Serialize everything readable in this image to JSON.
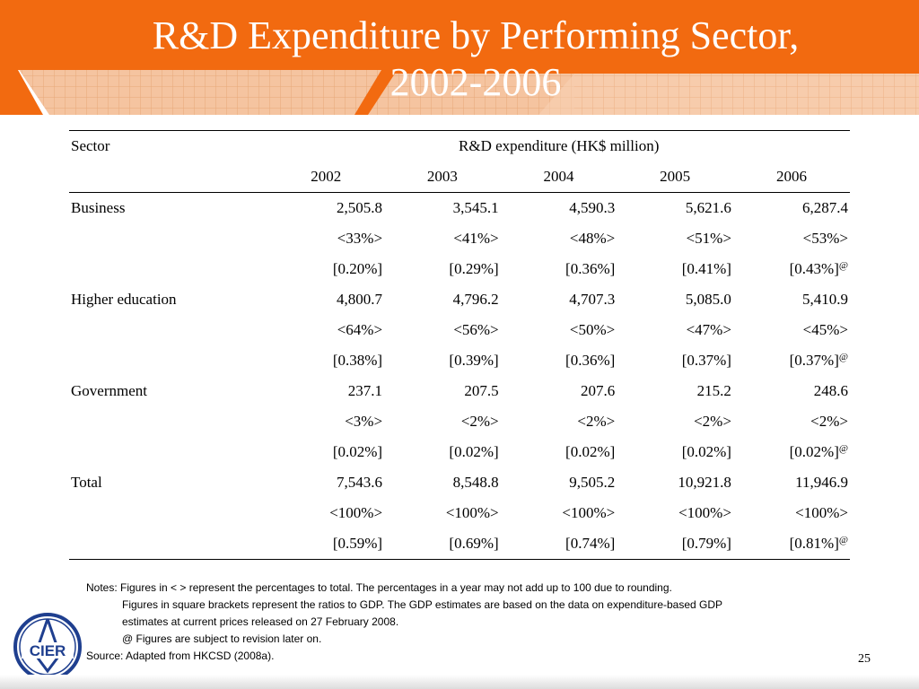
{
  "slide": {
    "title_line1": "R&D Expenditure by Performing Sector,",
    "title_line2": "2002-2006",
    "page_number": "25",
    "colors": {
      "accent_orange": "#F26A10",
      "grid_orange": "#E8A878",
      "text": "#000000",
      "title_text": "#FFFFFF"
    }
  },
  "table": {
    "sector_header": "Sector",
    "spanning_header": "R&D expenditure (HK$ million)",
    "years": [
      "2002",
      "2003",
      "2004",
      "2005",
      "2006"
    ],
    "rows": [
      {
        "sector": "Business",
        "values": [
          "2,505.8",
          "3,545.1",
          "4,590.3",
          "5,621.6",
          "6,287.4"
        ],
        "shares": [
          "<33%>",
          "<41%>",
          "<48%>",
          "<51%>",
          "<53%>"
        ],
        "gdp_ratios": [
          "[0.20%]",
          "[0.29%]",
          "[0.36%]",
          "[0.41%]",
          "[0.43%]"
        ]
      },
      {
        "sector": "Higher education",
        "values": [
          "4,800.7",
          "4,796.2",
          "4,707.3",
          "5,085.0",
          "5,410.9"
        ],
        "shares": [
          "<64%>",
          "<56%>",
          "<50%>",
          "<47%>",
          "<45%>"
        ],
        "gdp_ratios": [
          "[0.38%]",
          "[0.39%]",
          "[0.36%]",
          "[0.37%]",
          "[0.37%]"
        ]
      },
      {
        "sector": "Government",
        "values": [
          "237.1",
          "207.5",
          "207.6",
          "215.2",
          "248.6"
        ],
        "shares": [
          "<3%>",
          "<2%>",
          "<2%>",
          "<2%>",
          "<2%>"
        ],
        "gdp_ratios": [
          "[0.02%]",
          "[0.02%]",
          "[0.02%]",
          "[0.02%]",
          "[0.02%]"
        ]
      },
      {
        "sector": "Total",
        "values": [
          "7,543.6",
          "8,548.8",
          "9,505.2",
          "10,921.8",
          "11,946.9"
        ],
        "shares": [
          "<100%>",
          "<100%>",
          "<100%>",
          "<100%>",
          "<100%>"
        ],
        "gdp_ratios": [
          "[0.59%]",
          "[0.69%]",
          "[0.74%]",
          "[0.79%]",
          "[0.81%]"
        ]
      }
    ],
    "revision_marker": "@"
  },
  "notes": {
    "line1": "Notes: Figures in < > represent the percentages to total. The percentages in a year may not add up to 100 due to rounding.",
    "line2": "Figures in square brackets represent the ratios to GDP. The GDP estimates are based on the data on expenditure-based GDP",
    "line3": "estimates at current prices released on 27 February 2008.",
    "line4": "@ Figures are subject to revision later on.",
    "source": "Source: Adapted from HKCSD (2008a)."
  },
  "logo": {
    "text": "CIER"
  }
}
